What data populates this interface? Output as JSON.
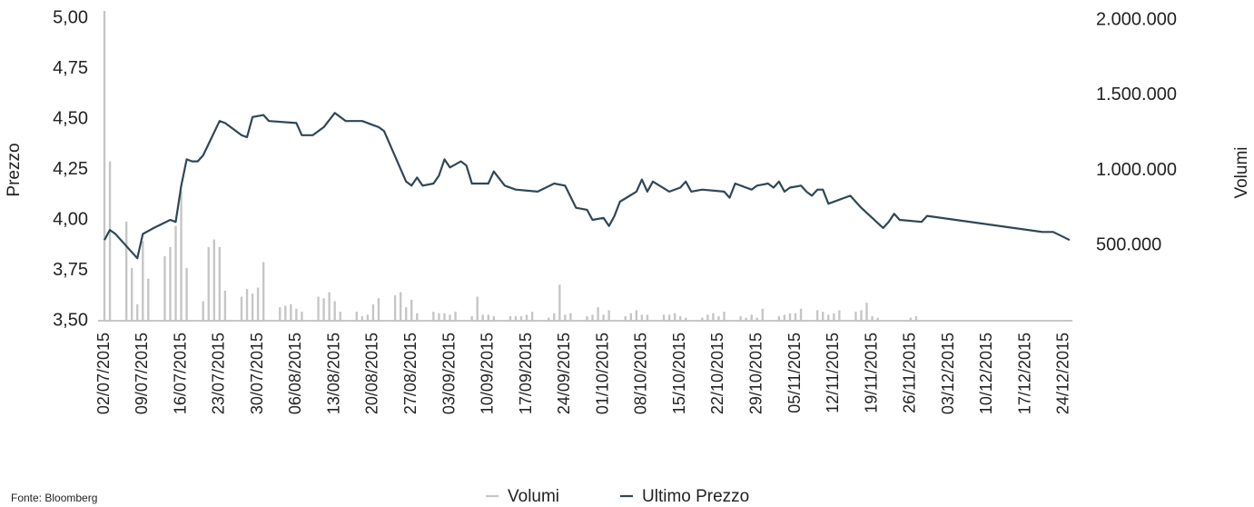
{
  "chart_data": {
    "type": "combo",
    "y_label": "Prezzo",
    "y2_label": "Volumi",
    "source": "Fonte: Bloomberg",
    "legend": "bottom",
    "xlim": [
      "02/07/2015",
      "25/12/2015"
    ],
    "xticks": [
      "02/07/2015",
      "09/07/2015",
      "16/07/2015",
      "23/07/2015",
      "30/07/2015",
      "06/08/2015",
      "13/08/2015",
      "20/08/2015",
      "27/08/2015",
      "03/09/2015",
      "10/09/2015",
      "17/09/2015",
      "24/09/2015",
      "01/10/2015",
      "08/10/2015",
      "15/10/2015",
      "22/10/2015",
      "29/10/2015",
      "05/11/2015",
      "12/11/2015",
      "19/11/2015",
      "26/11/2015",
      "03/12/2015",
      "10/12/2015",
      "17/12/2015",
      "24/12/2015"
    ],
    "ylim": [
      3.5,
      5.0
    ],
    "yticks": [
      {
        "value": 3.5,
        "label": "3,50"
      },
      {
        "value": 3.75,
        "label": "3,75"
      },
      {
        "value": 4.0,
        "label": "4,00"
      },
      {
        "value": 4.25,
        "label": "4,25"
      },
      {
        "value": 4.5,
        "label": "4,50"
      },
      {
        "value": 4.75,
        "label": "4,75"
      },
      {
        "value": 5.0,
        "label": "5,00"
      }
    ],
    "y2lim": [
      0,
      2000000
    ],
    "y2ticks": [
      {
        "value": 500000,
        "label": "500.000"
      },
      {
        "value": 1000000,
        "label": "1.000.000"
      },
      {
        "value": 1500000,
        "label": "1.500.000"
      },
      {
        "value": 2000000,
        "label": "2.000.000"
      }
    ],
    "series": [
      {
        "name": "Volumi",
        "type": "bar",
        "axis": "y2",
        "color": "#c6c6c6",
        "x": [
          "02/07/2015",
          "03/07/2015",
          "06/07/2015",
          "07/07/2015",
          "08/07/2015",
          "09/07/2015",
          "10/07/2015",
          "13/07/2015",
          "14/07/2015",
          "15/07/2015",
          "16/07/2015",
          "17/07/2015",
          "20/07/2015",
          "21/07/2015",
          "22/07/2015",
          "23/07/2015",
          "24/07/2015",
          "27/07/2015",
          "28/07/2015",
          "29/07/2015",
          "30/07/2015",
          "31/07/2015",
          "03/08/2015",
          "04/08/2015",
          "05/08/2015",
          "06/08/2015",
          "07/08/2015",
          "10/08/2015",
          "11/08/2015",
          "12/08/2015",
          "13/08/2015",
          "14/08/2015",
          "17/08/2015",
          "18/08/2015",
          "19/08/2015",
          "20/08/2015",
          "21/08/2015",
          "24/08/2015",
          "25/08/2015",
          "26/08/2015",
          "27/08/2015",
          "28/08/2015",
          "31/08/2015",
          "01/09/2015",
          "02/09/2015",
          "03/09/2015",
          "04/09/2015",
          "07/09/2015",
          "08/09/2015",
          "09/09/2015",
          "10/09/2015",
          "11/09/2015",
          "14/09/2015",
          "15/09/2015",
          "16/09/2015",
          "17/09/2015",
          "18/09/2015",
          "21/09/2015",
          "22/09/2015",
          "23/09/2015",
          "24/09/2015",
          "25/09/2015",
          "28/09/2015",
          "29/09/2015",
          "30/09/2015",
          "01/10/2015",
          "02/10/2015",
          "05/10/2015",
          "06/10/2015",
          "07/10/2015",
          "08/10/2015",
          "09/10/2015",
          "12/10/2015",
          "13/10/2015",
          "14/10/2015",
          "15/10/2015",
          "16/10/2015",
          "19/10/2015",
          "20/10/2015",
          "21/10/2015",
          "22/10/2015",
          "23/10/2015",
          "26/10/2015",
          "27/10/2015",
          "28/10/2015",
          "29/10/2015",
          "30/10/2015",
          "02/11/2015",
          "03/11/2015",
          "04/11/2015",
          "05/11/2015",
          "06/11/2015",
          "09/11/2015",
          "10/11/2015",
          "11/11/2015",
          "12/11/2015",
          "13/11/2015",
          "16/11/2015",
          "17/11/2015",
          "18/11/2015",
          "19/11/2015",
          "20/11/2015",
          "26/11/2015",
          "27/11/2015"
        ],
        "values": [
          2060000,
          1060000,
          660000,
          350000,
          110000,
          530000,
          280000,
          430000,
          490000,
          630000,
          860000,
          350000,
          130000,
          490000,
          540000,
          490000,
          200000,
          160000,
          210000,
          180000,
          220000,
          390000,
          90000,
          100000,
          110000,
          80000,
          60000,
          160000,
          150000,
          190000,
          130000,
          60000,
          60000,
          30000,
          40000,
          110000,
          150000,
          170000,
          190000,
          90000,
          140000,
          50000,
          60000,
          50000,
          50000,
          40000,
          60000,
          30000,
          160000,
          40000,
          40000,
          30000,
          30000,
          30000,
          30000,
          40000,
          60000,
          20000,
          50000,
          240000,
          40000,
          50000,
          30000,
          40000,
          90000,
          40000,
          70000,
          30000,
          50000,
          70000,
          40000,
          40000,
          40000,
          40000,
          50000,
          30000,
          20000,
          20000,
          40000,
          50000,
          30000,
          60000,
          30000,
          20000,
          40000,
          20000,
          80000,
          30000,
          40000,
          50000,
          50000,
          80000,
          70000,
          60000,
          40000,
          50000,
          70000,
          60000,
          70000,
          120000,
          30000,
          20000,
          20000,
          30000
        ]
      },
      {
        "name": "Ultimo Prezzo",
        "type": "line",
        "axis": "y",
        "color": "#2e4756",
        "x": [
          "02/07/2015",
          "03/07/2015",
          "04/07/2015",
          "08/07/2015",
          "09/07/2015",
          "11/07/2015",
          "14/07/2015",
          "15/07/2015",
          "16/07/2015",
          "17/07/2015",
          "18/07/2015",
          "19/07/2015",
          "20/07/2015",
          "23/07/2015",
          "24/07/2015",
          "27/07/2015",
          "28/07/2015",
          "29/07/2015",
          "31/07/2015",
          "01/08/2015",
          "06/08/2015",
          "07/08/2015",
          "09/08/2015",
          "11/08/2015",
          "13/08/2015",
          "15/08/2015",
          "18/08/2015",
          "20/08/2015",
          "21/08/2015",
          "22/08/2015",
          "26/08/2015",
          "27/08/2015",
          "28/08/2015",
          "29/08/2015",
          "31/08/2015",
          "01/09/2015",
          "02/09/2015",
          "03/09/2015",
          "05/09/2015",
          "06/09/2015",
          "07/09/2015",
          "10/09/2015",
          "11/09/2015",
          "13/09/2015",
          "15/09/2015",
          "19/09/2015",
          "22/09/2015",
          "24/09/2015",
          "26/09/2015",
          "28/09/2015",
          "29/09/2015",
          "01/10/2015",
          "02/10/2015",
          "03/10/2015",
          "04/10/2015",
          "07/10/2015",
          "08/10/2015",
          "09/10/2015",
          "10/10/2015",
          "13/10/2015",
          "15/10/2015",
          "16/10/2015",
          "17/10/2015",
          "19/10/2015",
          "23/10/2015",
          "24/10/2015",
          "25/10/2015",
          "28/10/2015",
          "29/10/2015",
          "31/10/2015",
          "01/11/2015",
          "02/11/2015",
          "03/11/2015",
          "04/11/2015",
          "06/11/2015",
          "07/11/2015",
          "08/11/2015",
          "09/11/2015",
          "10/11/2015",
          "11/11/2015",
          "15/11/2015",
          "17/11/2015",
          "21/11/2015",
          "22/11/2015",
          "23/11/2015",
          "24/11/2015",
          "28/11/2015",
          "29/11/2015",
          "20/12/2015",
          "22/12/2015",
          "25/12/2015"
        ],
        "values": [
          3.9,
          3.95,
          3.93,
          3.81,
          3.93,
          3.96,
          4.0,
          3.99,
          4.17,
          4.3,
          4.29,
          4.29,
          4.32,
          4.49,
          4.48,
          4.42,
          4.41,
          4.51,
          4.52,
          4.49,
          4.48,
          4.42,
          4.42,
          4.46,
          4.53,
          4.49,
          4.49,
          4.47,
          4.46,
          4.44,
          4.19,
          4.17,
          4.21,
          4.17,
          4.18,
          4.22,
          4.3,
          4.26,
          4.29,
          4.27,
          4.18,
          4.18,
          4.24,
          4.17,
          4.15,
          4.14,
          4.18,
          4.17,
          4.06,
          4.05,
          4.0,
          4.01,
          3.97,
          4.02,
          4.09,
          4.14,
          4.2,
          4.14,
          4.19,
          4.14,
          4.16,
          4.19,
          4.14,
          4.15,
          4.14,
          4.11,
          4.18,
          4.15,
          4.17,
          4.18,
          4.16,
          4.19,
          4.14,
          4.16,
          4.17,
          4.14,
          4.12,
          4.15,
          4.15,
          4.08,
          4.12,
          4.06,
          3.96,
          3.99,
          4.03,
          4.0,
          3.99,
          4.02,
          3.94,
          3.94,
          3.9
        ]
      }
    ]
  }
}
